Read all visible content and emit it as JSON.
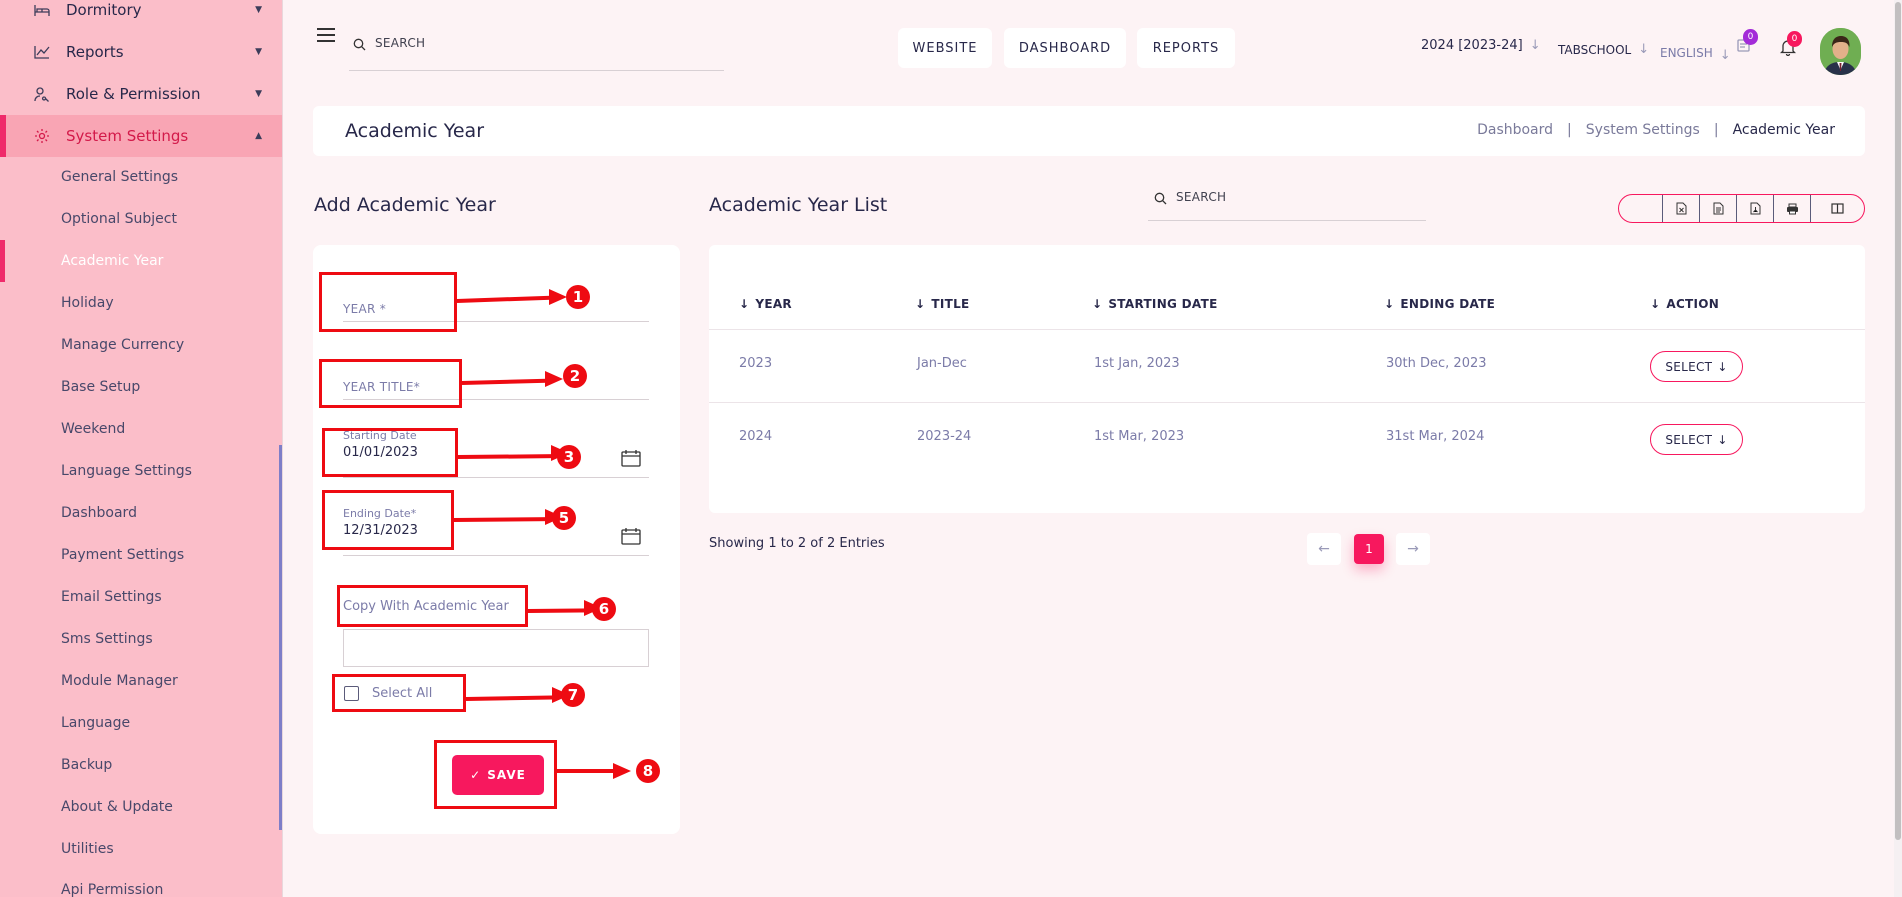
{
  "sidebar": {
    "top_items": [
      {
        "label": "Dormitory",
        "icon": "bed-icon"
      },
      {
        "label": "Reports",
        "icon": "chart-line-icon"
      },
      {
        "label": "Role & Permission",
        "icon": "user-key-icon"
      },
      {
        "label": "System Settings",
        "icon": "gear-icon"
      }
    ],
    "sub_items": [
      "General Settings",
      "Optional Subject",
      "Academic Year",
      "Holiday",
      "Manage Currency",
      "Base Setup",
      "Weekend",
      "Language Settings",
      "Dashboard",
      "Payment Settings",
      "Email Settings",
      "Sms Settings",
      "Module Manager",
      "Language",
      "Backup",
      "About & Update",
      "Utilities",
      "Api Permission"
    ],
    "active_sub": "Academic Year"
  },
  "header": {
    "search_placeholder": "SEARCH",
    "nav_buttons": [
      "WEBSITE",
      "DASHBOARD",
      "REPORTS"
    ],
    "session": "2024 [2023-24]",
    "school": "TABSCHOOL",
    "language": "ENGLISH",
    "notice_count": "0",
    "notification_count": "0"
  },
  "page": {
    "title": "Academic Year",
    "breadcrumb": [
      "Dashboard",
      "System Settings",
      "Academic Year"
    ],
    "breadcrumb_sep": "|"
  },
  "form": {
    "title": "Add Academic Year",
    "year_placeholder": "YEAR *",
    "year_title_placeholder": "YEAR TITLE*",
    "starting_date_label": "Starting Date",
    "starting_date_value": "01/01/2023",
    "ending_date_label": "Ending Date*",
    "ending_date_value": "12/31/2023",
    "copy_label": "Copy With Academic Year",
    "select_all_label": "Select All",
    "save_label": "SAVE",
    "save_check": "✓"
  },
  "list": {
    "title": "Academic Year List",
    "search_placeholder": "SEARCH",
    "toolbar_icons": [
      "copy-icon",
      "excel-icon",
      "csv-icon",
      "pdf-icon",
      "print-icon",
      "columns-icon"
    ],
    "columns": [
      "YEAR",
      "TITLE",
      "STARTING DATE",
      "ENDING DATE",
      "ACTION"
    ],
    "rows": [
      {
        "year": "2023",
        "title": "Jan-Dec",
        "start": "1st Jan, 2023",
        "end": "30th Dec, 2023",
        "action": "SELECT"
      },
      {
        "year": "2024",
        "title": "2023-24",
        "start": "1st Mar, 2023",
        "end": "31st Mar, 2024",
        "action": "SELECT"
      }
    ],
    "showing": "Showing 1 to 2 of 2 Entries",
    "current_page": "1"
  },
  "annotations": [
    "1",
    "2",
    "3",
    "5",
    "6",
    "7",
    "8"
  ],
  "colors": {
    "accent": "#f7185e",
    "sidebar_bg": "#fbbec9",
    "annotation_red": "#ee0b12",
    "page_bg": "#fdf3f5"
  }
}
